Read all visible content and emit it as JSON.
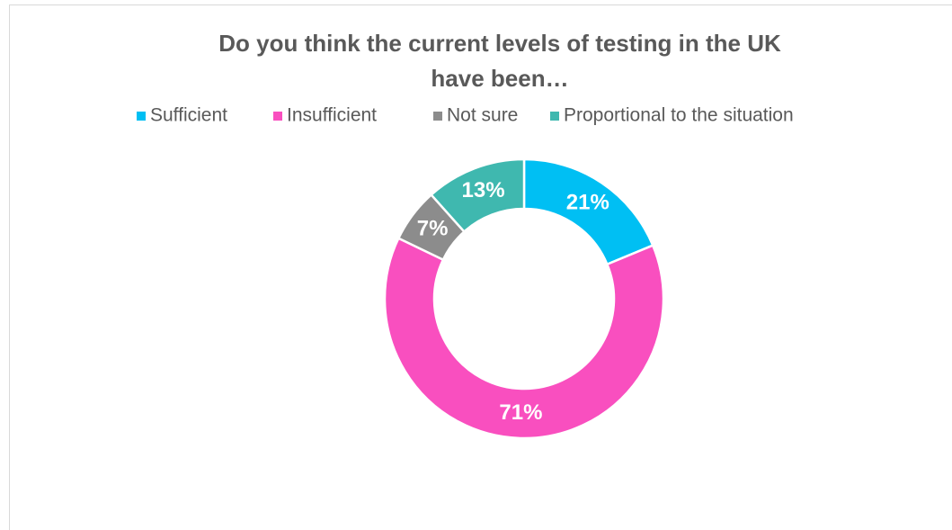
{
  "chart_data": {
    "type": "donut",
    "title": [
      "Do you think the current levels of testing in the UK",
      "have been…"
    ],
    "categories": [
      "Sufficient",
      "Insufficient",
      "Not sure",
      "Proportional to the situation"
    ],
    "values": [
      21,
      71,
      7,
      13
    ],
    "value_labels": [
      "21%",
      "71%",
      "7%",
      "13%"
    ],
    "colors": [
      "#00bff3",
      "#f94fbf",
      "#8c8c8c",
      "#3fb8af"
    ],
    "legend": "top"
  }
}
